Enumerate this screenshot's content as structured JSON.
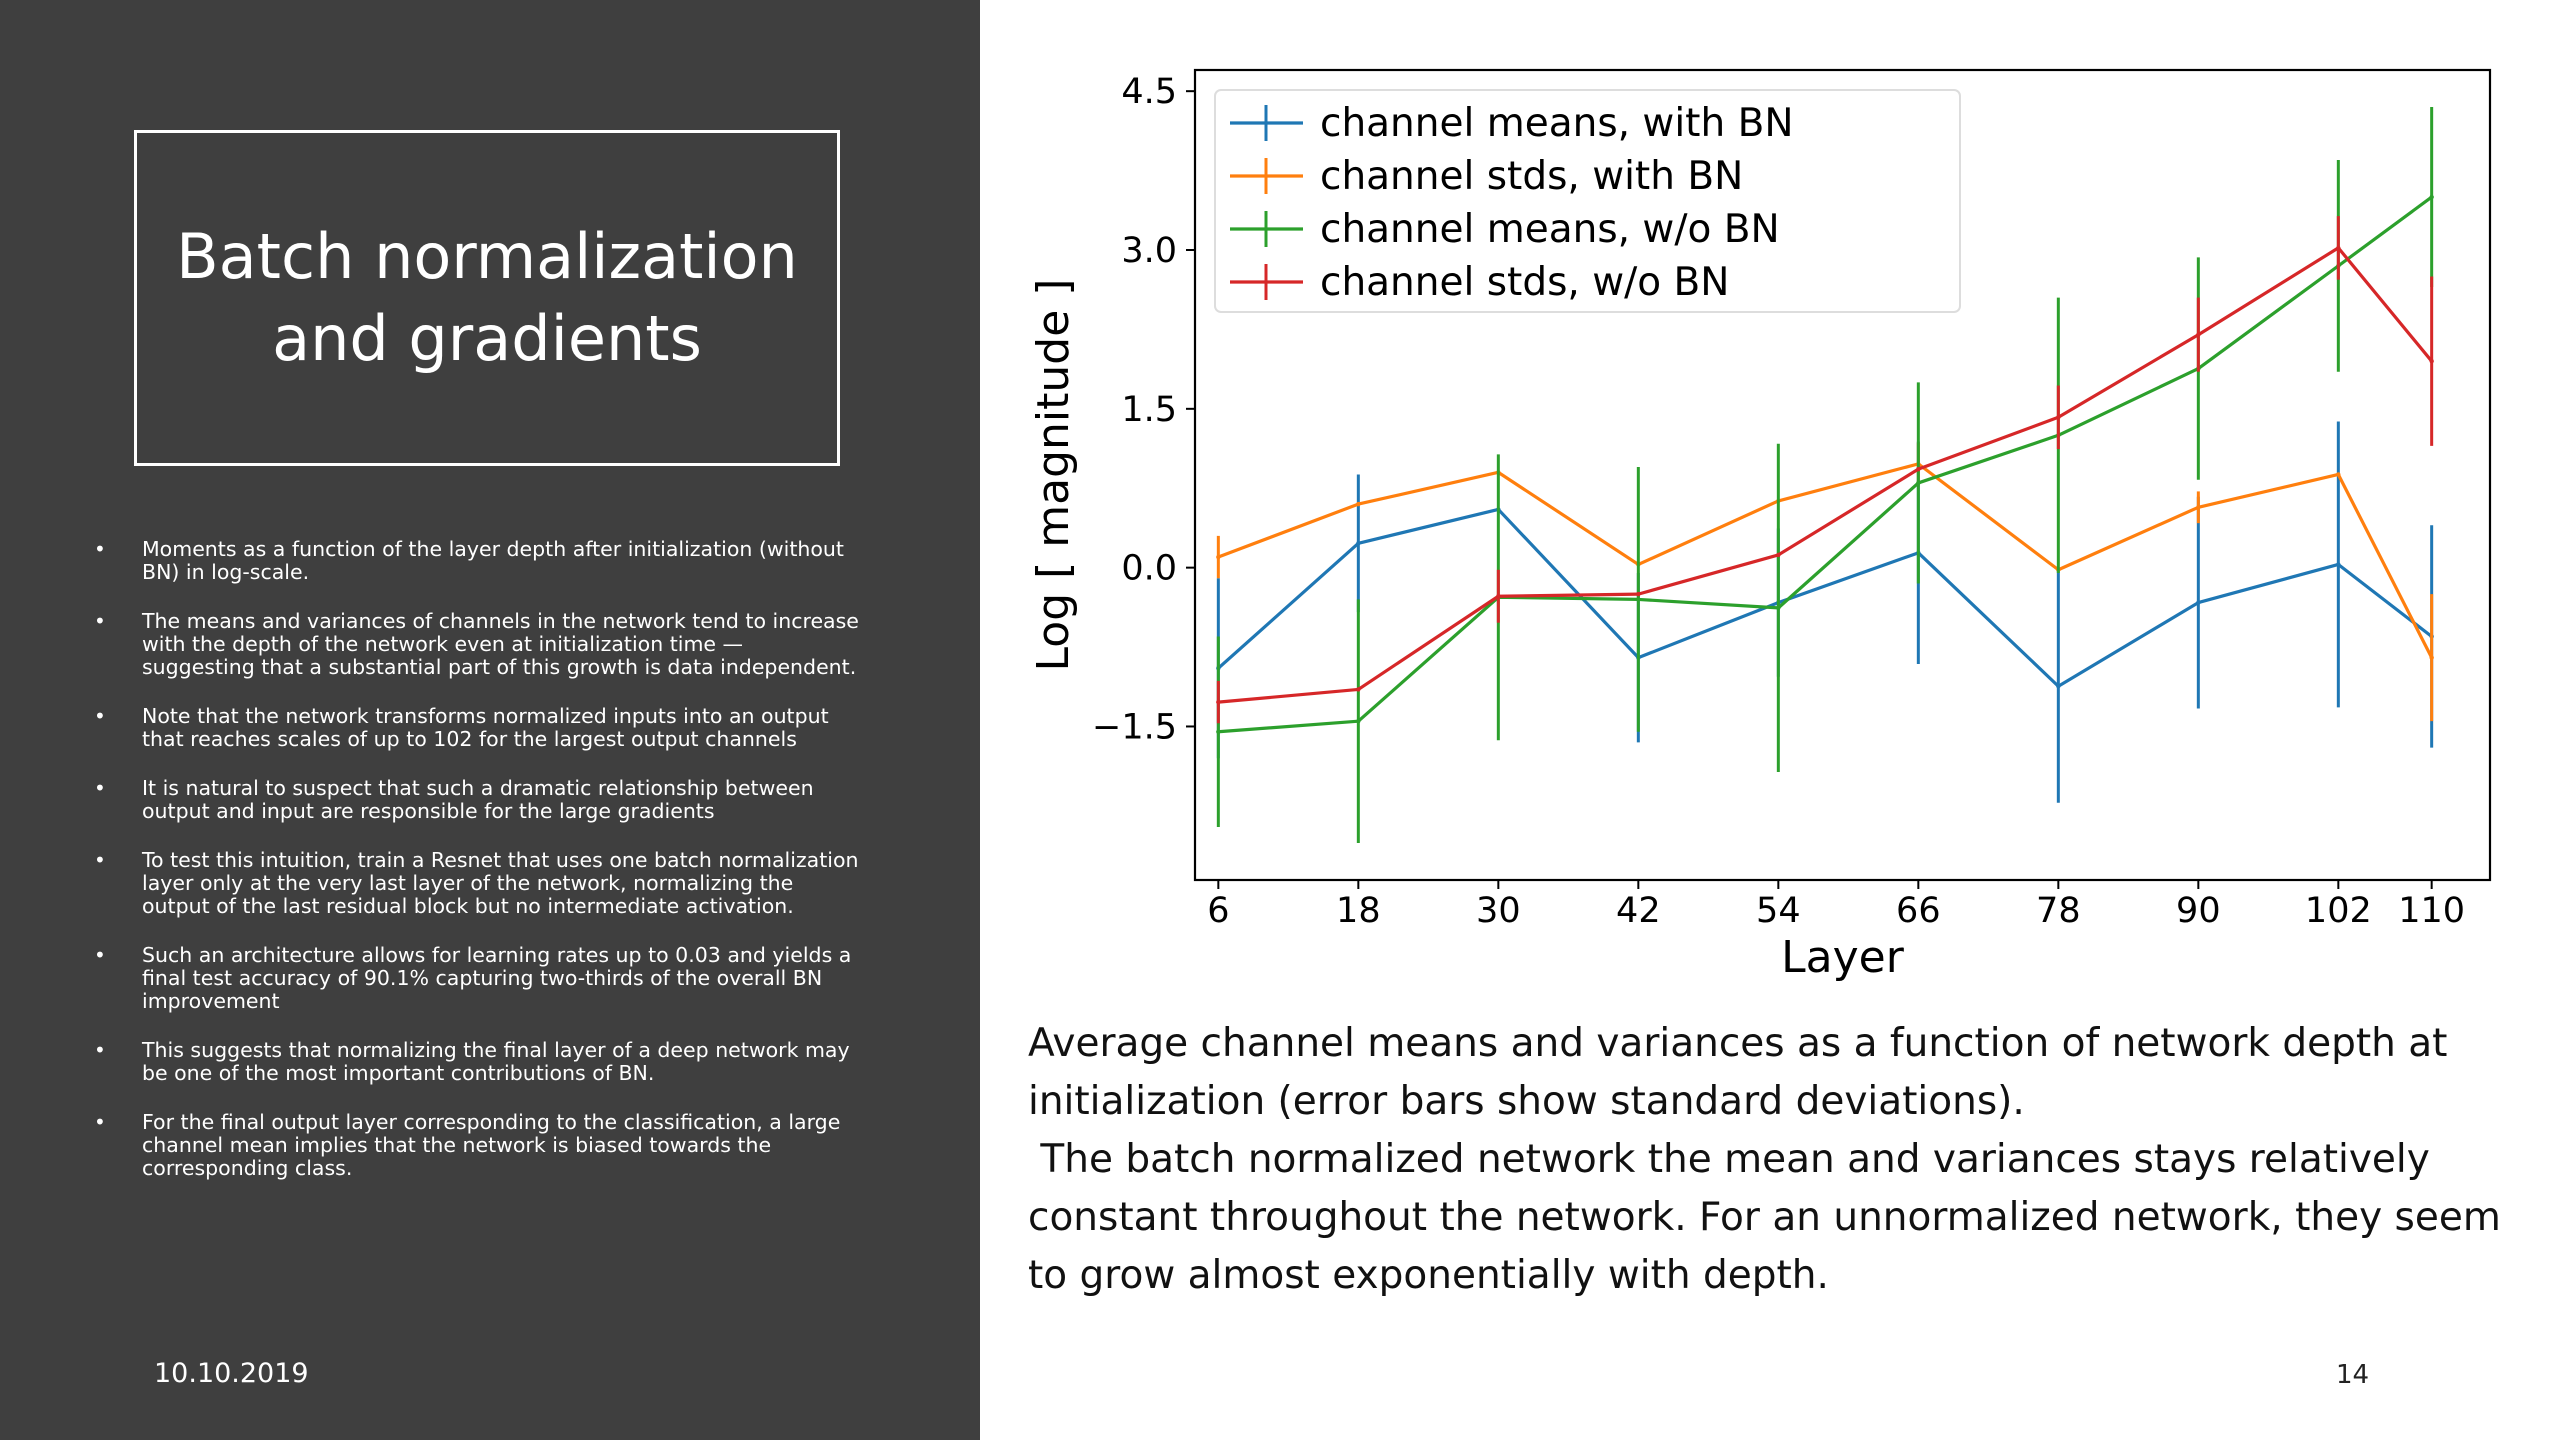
{
  "slide": {
    "title": "Batch normalization\nand gradients",
    "bullets": [
      "Moments as a function of the layer depth after initialization (without BN) in log-scale.",
      "The means and variances of channels in the network tend to increase with the depth of the network even at initialization time — suggesting that a substantial part of this growth is data independent.",
      "Note that the network transforms normalized inputs into an output that reaches scales of up to 102 for the largest output channels",
      "It is natural to suspect that such a dramatic relationship between output and input are responsible for the large gradients",
      "To test this intuition, train a Resnet that uses one batch normalization layer only at the very last layer of the network, normalizing the output of the last residual block but no intermediate activation.",
      "Such an architecture allows for learning rates up to 0.03 and yields a final test accuracy of 90.1% capturing two-thirds of the overall BN improvement",
      "This suggests that normalizing the final layer of a deep network may be one of the most important contributions of BN.",
      "For the final output layer corresponding to the classification, a large channel mean implies that the network is biased towards the corresponding class."
    ],
    "bullet_symbol": "•",
    "date": "10.10.2019",
    "page_number": "14",
    "caption_lines": [
      "Average channel means and variances as a function of network depth at",
      "initialization (error bars show standard deviations).",
      " The batch normalized network the mean and variances stays relatively",
      "constant throughout the network. For an unnormalized network, they seem",
      "to grow almost exponentially with depth."
    ],
    "colors": {
      "panel_background": "#3f3f3f",
      "panel_text": "#ffffff"
    }
  },
  "chart_data": {
    "type": "line",
    "xlabel": "Layer",
    "ylabel": "Log [ magnitude ]",
    "x": [
      6,
      18,
      30,
      42,
      54,
      66,
      78,
      90,
      102,
      110
    ],
    "x_tick_labels": [
      "6",
      "18",
      "30",
      "42",
      "54",
      "66",
      "78",
      "90",
      "102",
      "110"
    ],
    "y_ticks": [
      -1.5,
      0.0,
      1.5,
      3.0,
      4.5
    ],
    "y_tick_labels": [
      "−1.5",
      "0.0",
      "1.5",
      "3.0",
      "4.5"
    ],
    "xlim": [
      4,
      115
    ],
    "ylim": [
      -2.95,
      4.7
    ],
    "grid": false,
    "legend_position": "upper-left",
    "series": [
      {
        "name": "channel means, with BN",
        "color": "#1f77b4",
        "values": [
          -0.95,
          0.23,
          0.55,
          -0.85,
          -0.33,
          0.14,
          -1.12,
          -0.33,
          0.03,
          -0.65
        ],
        "errors": [
          0.85,
          0.65,
          0.0,
          0.8,
          0.7,
          1.05,
          1.1,
          1.0,
          1.35,
          1.05
        ]
      },
      {
        "name": "channel stds, with BN",
        "color": "#ff7f0e",
        "values": [
          0.1,
          0.6,
          0.9,
          0.03,
          0.63,
          0.98,
          -0.02,
          0.57,
          0.88,
          -0.85
        ],
        "errors": [
          0.2,
          0.0,
          0.0,
          0.0,
          0.0,
          0.2,
          0.0,
          0.15,
          0.0,
          0.6
        ]
      },
      {
        "name": "channel means, w/o BN",
        "color": "#2ca02c",
        "values": [
          -1.55,
          -1.45,
          -0.28,
          -0.3,
          -0.38,
          0.8,
          1.25,
          1.88,
          2.85,
          3.5
        ],
        "errors": [
          0.9,
          1.15,
          1.35,
          1.25,
          1.55,
          0.95,
          1.3,
          1.05,
          1.0,
          0.85
        ]
      },
      {
        "name": "channel stds, w/o BN",
        "color": "#d62728",
        "values": [
          -1.27,
          -1.15,
          -0.27,
          -0.25,
          0.12,
          0.93,
          1.42,
          2.2,
          3.02,
          1.95
        ],
        "errors": [
          0.2,
          0.0,
          0.25,
          0.0,
          0.0,
          0.0,
          0.3,
          0.35,
          0.3,
          0.8
        ]
      }
    ]
  }
}
